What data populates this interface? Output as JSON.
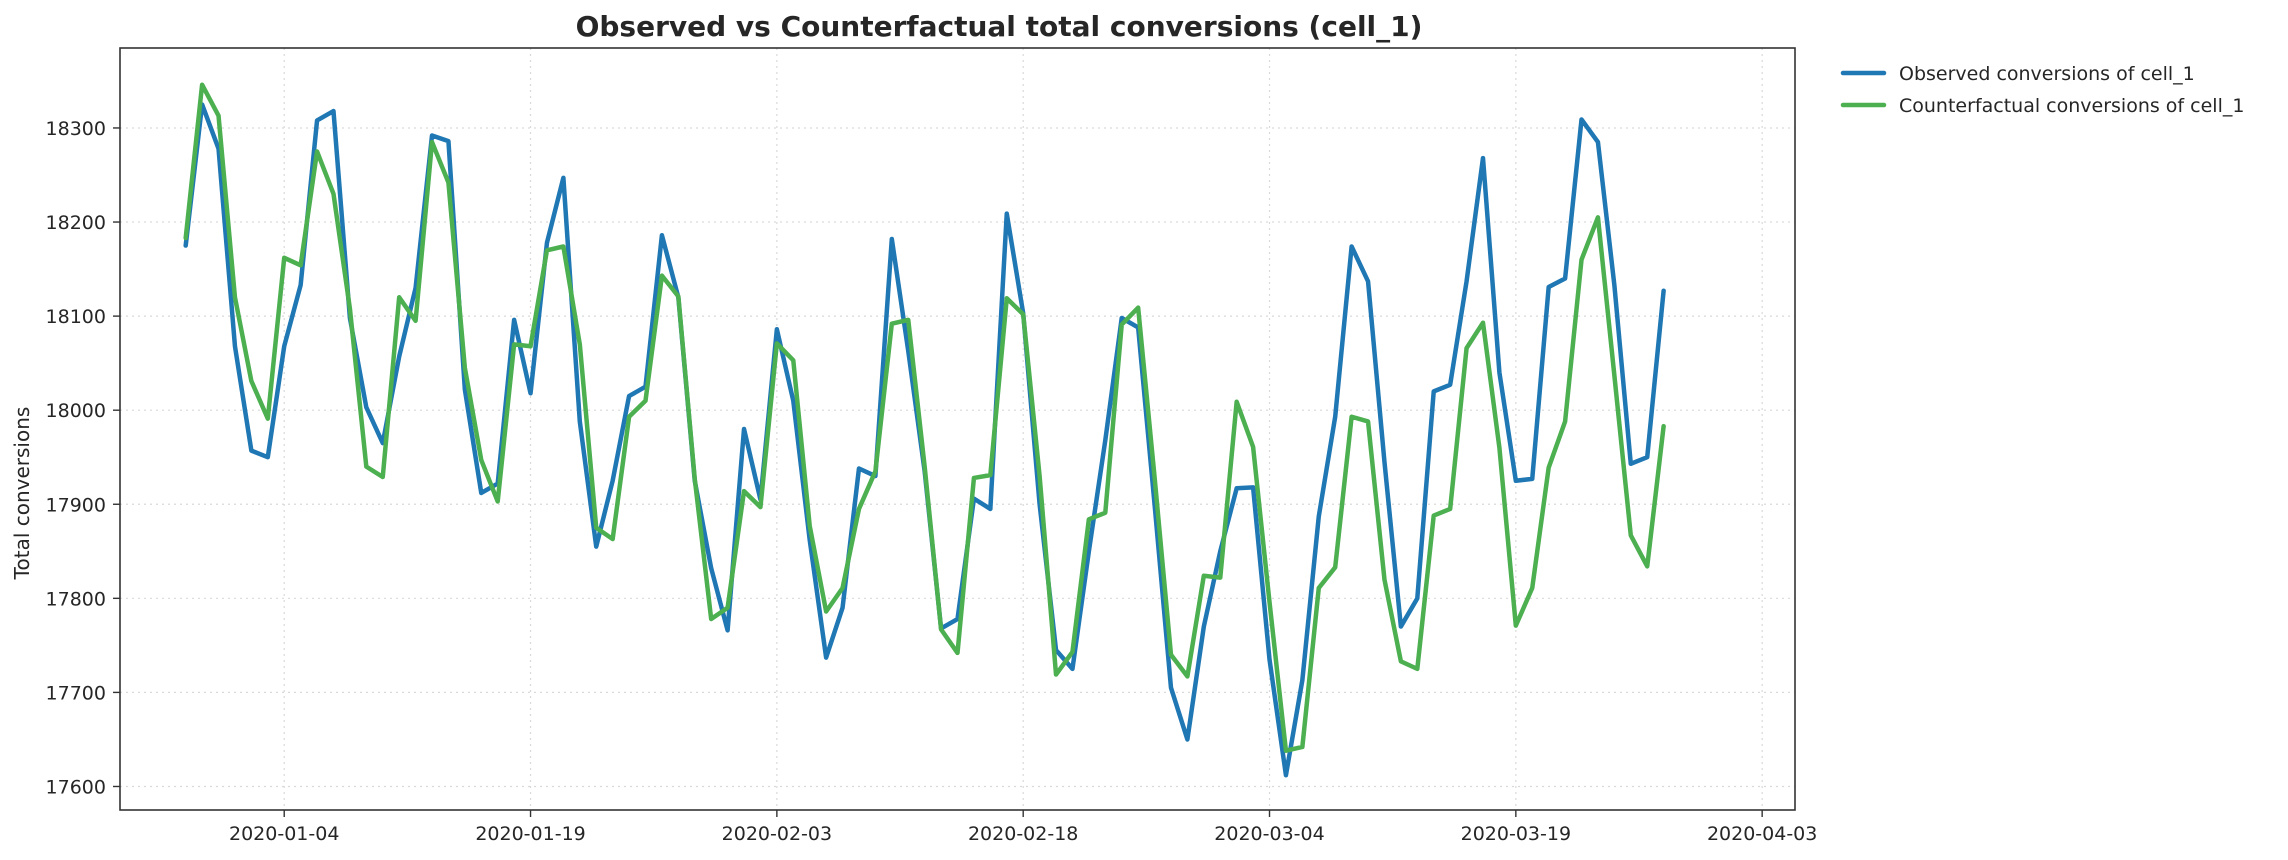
{
  "chart_data": {
    "type": "line",
    "title": "Observed vs Counterfactual total conversions (cell_1)",
    "xlabel": "",
    "ylabel": "Total conversions",
    "x_start_date": "2019-12-29",
    "x_tick_labels": [
      "2020-01-04",
      "2020-01-19",
      "2020-02-03",
      "2020-02-18",
      "2020-03-04",
      "2020-03-19",
      "2020-04-03"
    ],
    "xlim": [
      "2019-12-25",
      "2020-04-05"
    ],
    "y_ticks": [
      17600,
      17700,
      17800,
      17900,
      18000,
      18100,
      18200,
      18300
    ],
    "ylim": [
      17575,
      18385
    ],
    "grid": true,
    "legend_position": "outside-top-right",
    "series": [
      {
        "name": "Observed conversions of cell_1",
        "color": "#1f77b4",
        "values": [
          18175,
          18325,
          18278,
          18068,
          17957,
          17950,
          18068,
          18133,
          18308,
          18318,
          18098,
          18003,
          17965,
          18057,
          18130,
          18292,
          18286,
          18022,
          17912,
          17922,
          18096,
          18018,
          18178,
          18247,
          17988,
          17855,
          17925,
          18015,
          18025,
          18186,
          18120,
          17925,
          17832,
          17766,
          17980,
          17905,
          18086,
          18010,
          17862,
          17737,
          17790,
          17938,
          17930,
          18182,
          18063,
          17935,
          17768,
          17778,
          17906,
          17895,
          18209,
          18103,
          17900,
          17745,
          17725,
          17850,
          17968,
          18098,
          18088,
          17900,
          17705,
          17650,
          17770,
          17850,
          17917,
          17918,
          17735,
          17612,
          17713,
          17887,
          17993,
          18174,
          18137,
          17945,
          17770,
          17800,
          18020,
          18027,
          18137,
          18268,
          18040,
          17925,
          17927,
          18131,
          18140,
          18309,
          18285,
          18133,
          17943,
          17950,
          18127
        ]
      },
      {
        "name": "Counterfactual conversions of cell_1",
        "color": "#4caf50",
        "values": [
          18183,
          18346,
          18313,
          18120,
          18031,
          17991,
          18162,
          18154,
          18275,
          18230,
          18108,
          17940,
          17929,
          18120,
          18095,
          18285,
          18242,
          18045,
          17947,
          17903,
          18070,
          18068,
          18170,
          18174,
          18070,
          17875,
          17863,
          17993,
          18010,
          18143,
          18121,
          17927,
          17778,
          17790,
          17914,
          17897,
          18071,
          18053,
          17877,
          17786,
          17811,
          17895,
          17935,
          18092,
          18096,
          17940,
          17767,
          17742,
          17928,
          17931,
          18119,
          18102,
          17930,
          17719,
          17743,
          17884,
          17891,
          18091,
          18109,
          17929,
          17740,
          17717,
          17824,
          17822,
          18009,
          17961,
          17796,
          17638,
          17642,
          17811,
          17833,
          17993,
          17988,
          17820,
          17733,
          17725,
          17888,
          17895,
          18066,
          18093,
          17960,
          17771,
          17811,
          17939,
          17988,
          18160,
          18205,
          18037,
          17867,
          17834,
          17983
        ]
      }
    ]
  }
}
